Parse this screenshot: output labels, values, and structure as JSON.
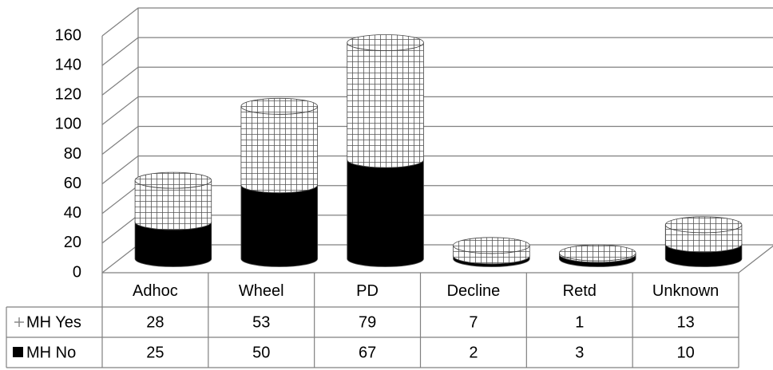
{
  "chart_data": {
    "type": "bar3d_stacked_cylinder",
    "categories": [
      "Adhoc",
      "Wheel",
      "PD",
      "Decline",
      "Retd",
      "Unknown"
    ],
    "series": [
      {
        "name": "MH Yes",
        "color": "#ffffff",
        "values": [
          28,
          53,
          79,
          7,
          1,
          13
        ]
      },
      {
        "name": "MH No",
        "color": "#000000",
        "values": [
          25,
          50,
          67,
          2,
          3,
          10
        ]
      }
    ],
    "ylim": [
      0,
      160
    ],
    "yticks": [
      0,
      20,
      40,
      60,
      80,
      100,
      120,
      140,
      160
    ],
    "grid": true
  }
}
